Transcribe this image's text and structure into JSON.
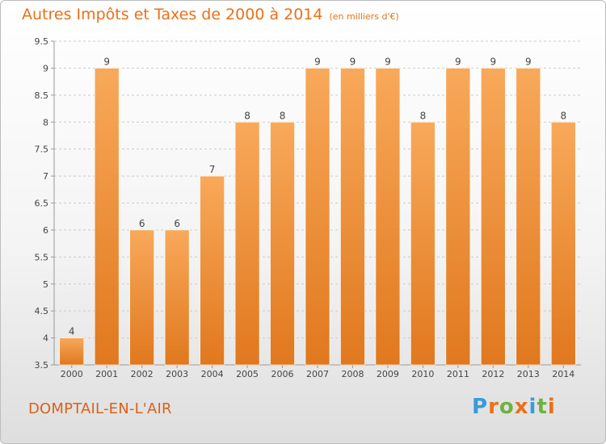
{
  "header": {
    "title": "Autres Impôts et Taxes de 2000 à 2014",
    "unit": "(en milliers d'€)"
  },
  "footer": {
    "location": "DOMPTAIL-EN-L'AIR",
    "logo": "Proxiti"
  },
  "colors": {
    "bar_light": "#f8a95a",
    "bar_dark": "#e0781e",
    "title": "#e8711a",
    "grid": "#cccccc",
    "logo_letters": [
      "#3a9bd9",
      "#e8711a",
      "#6db33f",
      "#e8711a",
      "#3a9bd9",
      "#6db33f",
      "#e8711a"
    ]
  },
  "chart_data": {
    "type": "bar",
    "title": "Autres Impôts et Taxes de 2000 à 2014",
    "subtitle": "(en milliers d'€)",
    "categories": [
      "2000",
      "2001",
      "2002",
      "2003",
      "2004",
      "2005",
      "2006",
      "2007",
      "2008",
      "2009",
      "2010",
      "2011",
      "2012",
      "2013",
      "2014"
    ],
    "values": [
      4,
      9,
      6,
      6,
      7,
      8,
      8,
      9,
      9,
      9,
      8,
      9,
      9,
      9,
      8
    ],
    "ylim": [
      3.5,
      9.5
    ],
    "yticks": [
      3.5,
      4,
      4.5,
      5,
      5.5,
      6,
      6.5,
      7,
      7.5,
      8,
      8.5,
      9,
      9.5
    ],
    "grid": true,
    "legend": "none"
  }
}
